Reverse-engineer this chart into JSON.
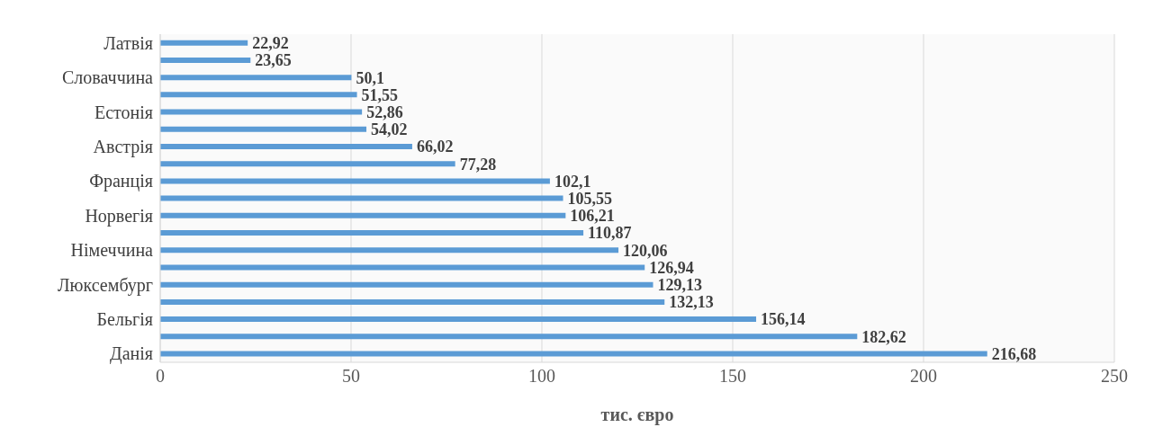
{
  "chart_data": {
    "type": "bar",
    "orientation": "horizontal",
    "xlabel": "тис. євро",
    "categories": [
      "Латвія",
      null,
      "Словаччина",
      null,
      "Естонія",
      null,
      "Австрія",
      null,
      "Франція",
      null,
      "Норвегія",
      null,
      "Німеччина",
      null,
      "Люксембург",
      null,
      "Бельгія",
      null,
      "Данія"
    ],
    "values": [
      22.92,
      23.65,
      50.1,
      51.55,
      52.86,
      54.02,
      66.02,
      77.28,
      102.1,
      105.55,
      106.21,
      110.87,
      120.06,
      126.94,
      129.13,
      132.13,
      156.14,
      182.62,
      216.68
    ],
    "value_labels": [
      "22,92",
      "23,65",
      "50,1",
      "51,55",
      "52,86",
      "54,02",
      "66,02",
      "77,28",
      "102,1",
      "105,55",
      "106,21",
      "110,87",
      "120,06",
      "126,94",
      "129,13",
      "132,13",
      "156,14",
      "182,62",
      "216,68"
    ],
    "color": "#5b9bd5",
    "xlim": [
      0,
      250
    ],
    "xticks": [
      0,
      50,
      100,
      150,
      200,
      250
    ],
    "grid": "x",
    "legend": false
  }
}
